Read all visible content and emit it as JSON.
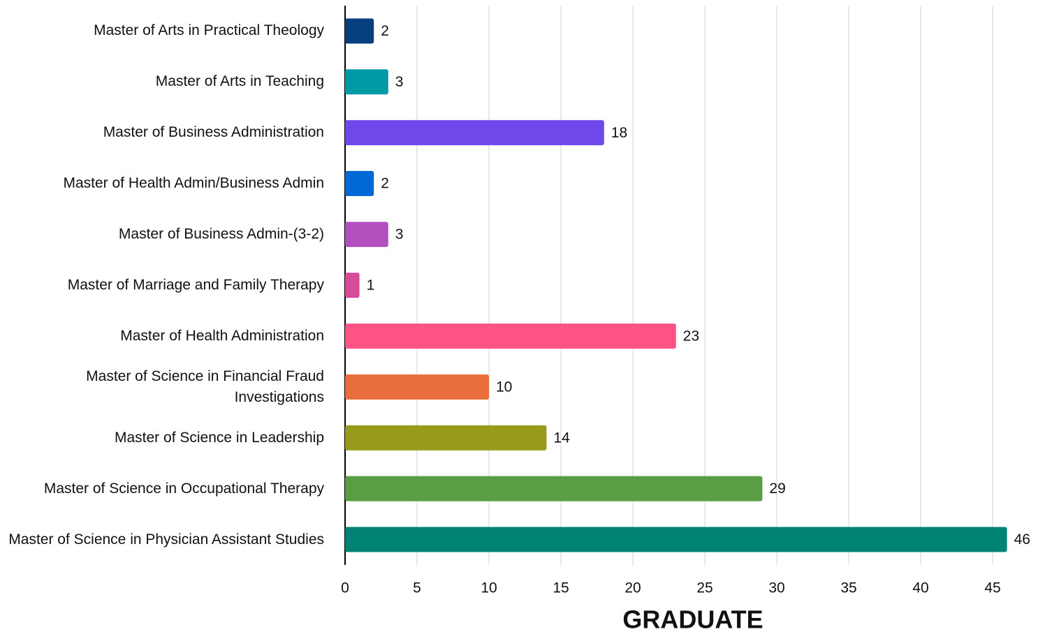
{
  "chart_data": {
    "type": "barh",
    "xlabel": "GRADUATE",
    "categories": [
      "Master of Arts in Practical Theology",
      "Master of Arts in Teaching",
      "Master of Business Administration",
      "Master of Health Admin/Business Admin",
      "Master of Business Admin-(3-2)",
      "Master of Marriage and Family Therapy",
      "Master of Health Administration",
      "Master of Science in Financial Fraud Investigations",
      "Master of Science in Leadership",
      "Master of Science in Occupational Therapy",
      "Master of Science in Physician Assistant Studies"
    ],
    "values": [
      2,
      3,
      18,
      2,
      3,
      1,
      23,
      10,
      14,
      29,
      46
    ],
    "colors": [
      "#073f7e",
      "#009aa6",
      "#6e48ea",
      "#0068d4",
      "#b250c0",
      "#d64c98",
      "#ff5386",
      "#e96e3c",
      "#979a1b",
      "#5a9d45",
      "#008373"
    ],
    "xlim": [
      0,
      46
    ],
    "xticks": [
      0,
      5,
      10,
      15,
      20,
      25,
      30,
      35,
      40,
      45
    ],
    "grid": true
  }
}
